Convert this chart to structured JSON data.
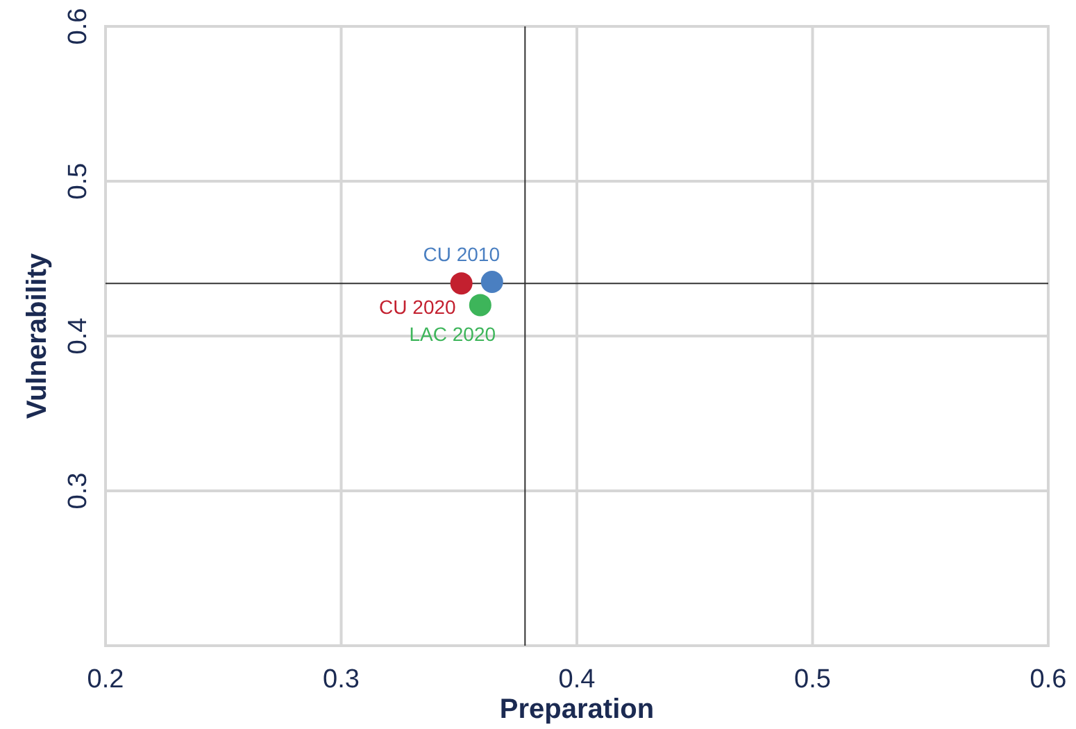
{
  "chart_data": {
    "type": "scatter",
    "xlabel": "Preparation",
    "ylabel": "Vulnerability",
    "xlim": [
      0.2,
      0.6
    ],
    "xticks": [
      0.2,
      0.3,
      0.4,
      0.5,
      0.6
    ],
    "ylim": [
      0.2,
      0.6
    ],
    "yticks": [
      0.3,
      0.4,
      0.5,
      0.6
    ],
    "grid": true,
    "marker": "circle",
    "series": [
      {
        "name": "CU 2010",
        "color": "#4a7fc1",
        "x": [
          0.364
        ],
        "values": [
          0.435
        ]
      },
      {
        "name": "CU 2020",
        "color": "#c3202f",
        "x": [
          0.351
        ],
        "values": [
          0.434
        ]
      },
      {
        "name": "LAC 2020",
        "color": "#3db55a",
        "x": [
          0.359
        ],
        "values": [
          0.42
        ]
      }
    ],
    "ref_lines": [
      {
        "axis": "x",
        "value": 0.378,
        "color": "#333333"
      },
      {
        "axis": "y",
        "value": 0.434,
        "color": "#333333"
      }
    ]
  }
}
